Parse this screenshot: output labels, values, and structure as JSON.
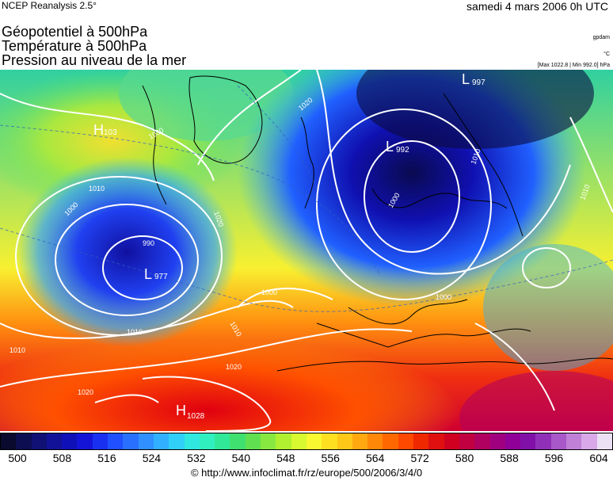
{
  "header": {
    "source": "NCEP Reanalysis 2.5°",
    "date": "samedi 4 mars 2006 0h UTC",
    "title_lines": [
      "Géopotentiel à 500hPa",
      "Température à 500hPa",
      "Pression au niveau de la mer"
    ],
    "units": [
      "gpdam",
      "°C",
      "[Max 1022.8 | Min 992.0] hPa"
    ]
  },
  "map": {
    "pressure_centers": [
      {
        "type": "H",
        "value": "1028"
      },
      {
        "type": "L",
        "value": "977"
      },
      {
        "type": "L",
        "value": "992"
      },
      {
        "type": "L",
        "value": "997"
      },
      {
        "type": "H",
        "value": "103"
      }
    ],
    "isobar_labels": [
      "1020",
      "1010",
      "1000",
      "990",
      "1010",
      "1000",
      "1020",
      "1010",
      "1020",
      "1030",
      "1000",
      "1000",
      "1010",
      "1010",
      "1020",
      "1010"
    ]
  },
  "colorbar": {
    "colors": [
      "#0a0a2e",
      "#0d0d52",
      "#101075",
      "#121298",
      "#1010b8",
      "#1414d8",
      "#1a30f0",
      "#2050ff",
      "#2a70ff",
      "#3090ff",
      "#30b0ff",
      "#30d0f8",
      "#30e8e0",
      "#30f0c0",
      "#30e898",
      "#40e070",
      "#60e050",
      "#88e840",
      "#b0f030",
      "#d8f830",
      "#f8f830",
      "#ffe020",
      "#ffc818",
      "#ffa810",
      "#ff8808",
      "#ff6800",
      "#ff4800",
      "#f02800",
      "#e01010",
      "#d00020",
      "#c00040",
      "#b00060",
      "#a00080",
      "#900098",
      "#8010a8",
      "#9030b8",
      "#a858c8",
      "#c080d8",
      "#d8a8e8",
      "#ece0f4"
    ],
    "ticks": [
      "500",
      "508",
      "516",
      "524",
      "532",
      "540",
      "548",
      "556",
      "564",
      "572",
      "580",
      "588",
      "596",
      "604"
    ]
  },
  "credit": "© http://www.infoclimat.fr/rz/europe/500/2006/3/4/0"
}
